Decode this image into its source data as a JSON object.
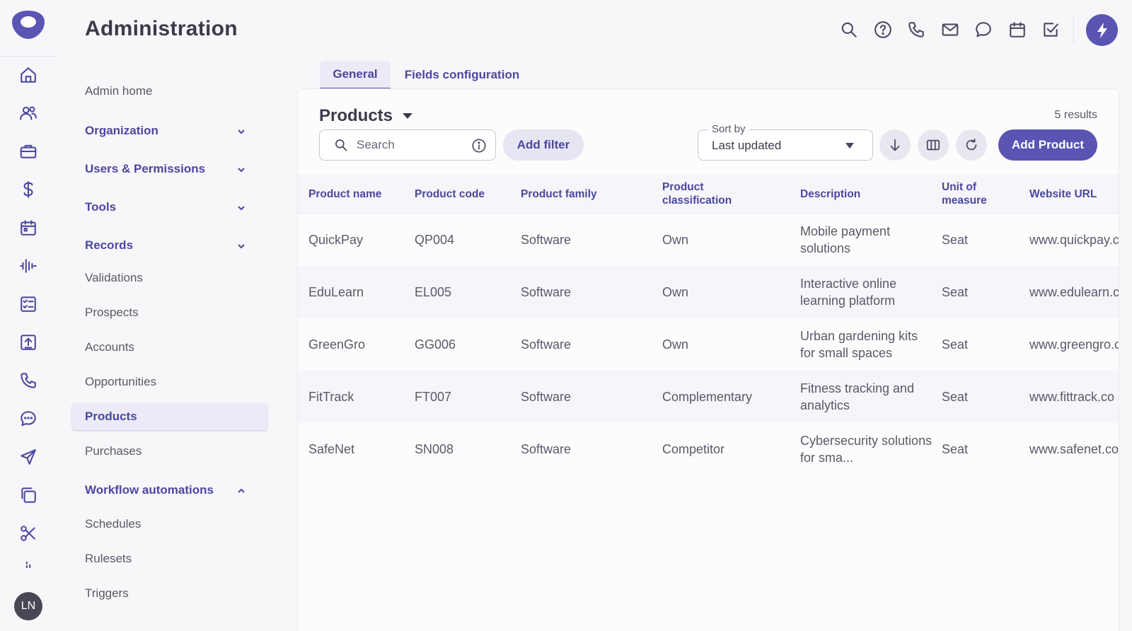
{
  "app": {
    "title": "Administration"
  },
  "rail": {
    "icons": [
      "home-icon",
      "users-icon",
      "briefcase-icon",
      "dollar-icon",
      "calendar-icon",
      "activity-icon",
      "checklist-icon",
      "upload-icon",
      "phone-icon",
      "chat-icon",
      "send-icon",
      "copy-icon",
      "scissors-icon",
      "bar-icon"
    ],
    "user_initials": "LN"
  },
  "header": {
    "icons": [
      "search-icon",
      "help-icon",
      "phone-icon",
      "mail-icon",
      "chat-icon",
      "calendar-icon",
      "task-icon"
    ],
    "accent_color": "#5a55b3"
  },
  "sidebar": {
    "items": [
      {
        "label": "Admin home",
        "type": "link"
      },
      {
        "label": "Organization",
        "type": "section",
        "expanded": false
      },
      {
        "label": "Users & Permissions",
        "type": "section",
        "expanded": false
      },
      {
        "label": "Tools",
        "type": "section",
        "expanded": false
      },
      {
        "label": "Records",
        "type": "section",
        "expanded": true
      },
      {
        "label": "Validations",
        "type": "link"
      },
      {
        "label": "Prospects",
        "type": "link"
      },
      {
        "label": "Accounts",
        "type": "link"
      },
      {
        "label": "Opportunities",
        "type": "link"
      },
      {
        "label": "Products",
        "type": "link",
        "active": true
      },
      {
        "label": "Purchases",
        "type": "link"
      },
      {
        "label": "Workflow automations",
        "type": "section",
        "expanded": true
      },
      {
        "label": "Schedules",
        "type": "link"
      },
      {
        "label": "Rulesets",
        "type": "link"
      },
      {
        "label": "Triggers",
        "type": "link"
      }
    ]
  },
  "tabs": [
    {
      "label": "General",
      "active": true
    },
    {
      "label": "Fields configuration",
      "active": false
    }
  ],
  "main": {
    "title": "Products",
    "results": "5 results",
    "search_placeholder": "Search",
    "add_filter_label": "Add filter",
    "sort_label": "Sort by",
    "sort_value": "Last updated",
    "add_product_label": "Add Product"
  },
  "table": {
    "columns": [
      "Product name",
      "Product code",
      "Product family",
      "Product classification",
      "Description",
      "Unit of measure",
      "Website URL"
    ],
    "rows": [
      [
        "QuickPay",
        "QP004",
        "Software",
        "Own",
        "Mobile payment solutions",
        "Seat",
        "www.quickpay.c"
      ],
      [
        "EduLearn",
        "EL005",
        "Software",
        "Own",
        "Interactive online learning platform",
        "Seat",
        "www.edulearn.c"
      ],
      [
        "GreenGro",
        "GG006",
        "Software",
        "Own",
        "Urban gardening kits for small spaces",
        "Seat",
        "www.greengro.c"
      ],
      [
        "FitTrack",
        "FT007",
        "Software",
        "Complementary",
        "Fitness tracking and analytics",
        "Seat",
        "www.fittrack.co"
      ],
      [
        "SafeNet",
        "SN008",
        "Software",
        "Competitor",
        "Cybersecurity solutions for sma...",
        "Seat",
        "www.safenet.co"
      ]
    ]
  }
}
